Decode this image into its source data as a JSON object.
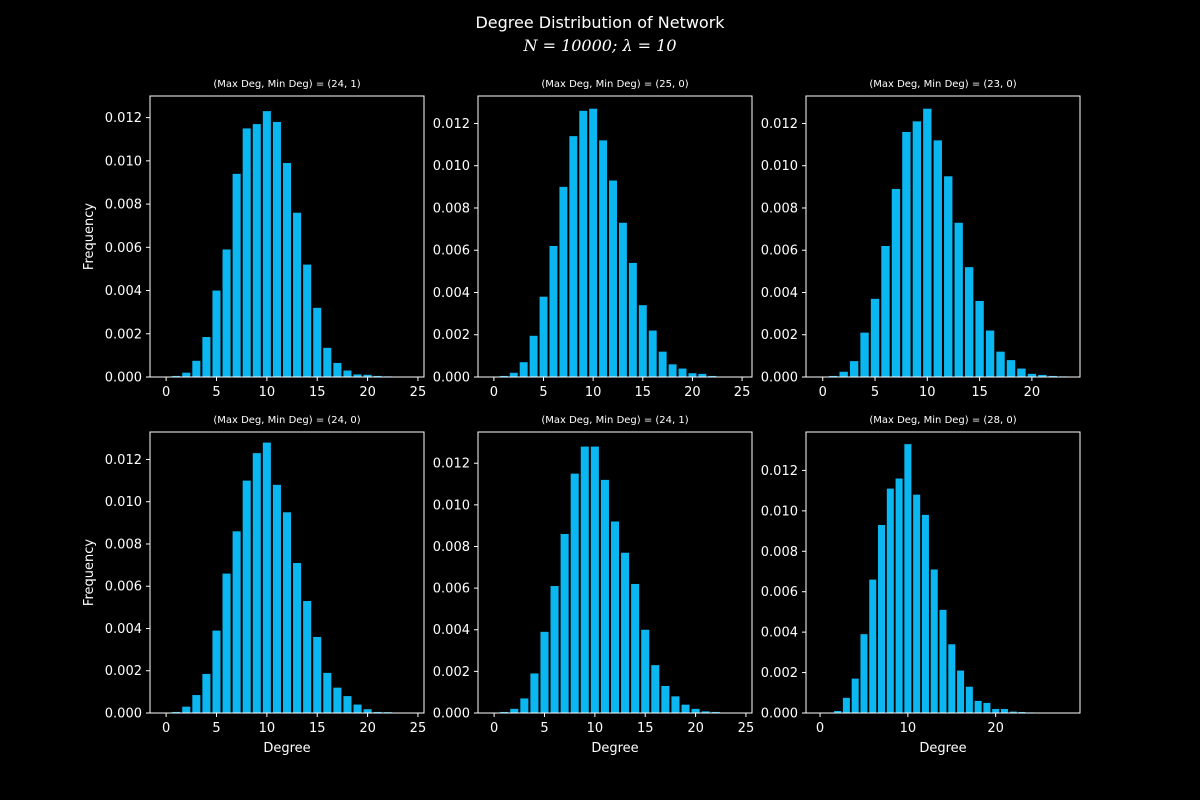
{
  "figure": {
    "title": "Degree Distribution of Network",
    "subtitle": "N = 10000; λ = 10"
  },
  "colors": {
    "background": "#000000",
    "bar": "#0bb7f0",
    "axes": "#ffffff",
    "text": "#ffffff"
  },
  "chart_data": [
    {
      "type": "bar",
      "title": "(Max Deg, Min Deg) = (24, 1)",
      "xlabel": "",
      "ylabel": "Frequency",
      "xlim": [
        -1.6,
        25.6
      ],
      "ylim": [
        0,
        0.013
      ],
      "xticks": [
        0,
        5,
        10,
        15,
        20,
        25
      ],
      "yticks": [
        "0.000",
        "0.002",
        "0.004",
        "0.006",
        "0.008",
        "0.010",
        "0.012"
      ],
      "x": [
        0,
        1,
        2,
        3,
        4,
        5,
        6,
        7,
        8,
        9,
        10,
        11,
        12,
        13,
        14,
        15,
        16,
        17,
        18,
        19,
        20,
        21,
        22,
        23,
        24
      ],
      "values": [
        0.0,
        5e-05,
        0.0002,
        0.00075,
        0.00185,
        0.004,
        0.0059,
        0.0094,
        0.0115,
        0.0117,
        0.0123,
        0.0118,
        0.0099,
        0.0076,
        0.0052,
        0.0032,
        0.00135,
        0.00065,
        0.0003,
        0.00012,
        0.0001,
        5e-05,
        3e-05,
        1e-05,
        1e-05
      ],
      "grid": false
    },
    {
      "type": "bar",
      "title": "(Max Deg, Min Deg) = (25, 0)",
      "xlabel": "",
      "ylabel": "",
      "xlim": [
        -1.6,
        26.0
      ],
      "ylim": [
        0,
        0.0133
      ],
      "xticks": [
        0,
        5,
        10,
        15,
        20,
        25
      ],
      "yticks": [
        "0.000",
        "0.002",
        "0.004",
        "0.006",
        "0.008",
        "0.010",
        "0.012"
      ],
      "x": [
        0,
        1,
        2,
        3,
        4,
        5,
        6,
        7,
        8,
        9,
        10,
        11,
        12,
        13,
        14,
        15,
        16,
        17,
        18,
        19,
        20,
        21,
        22,
        23,
        24,
        25
      ],
      "values": [
        0.0,
        5e-05,
        0.0002,
        0.0007,
        0.00195,
        0.0038,
        0.0062,
        0.009,
        0.0114,
        0.0126,
        0.0127,
        0.0112,
        0.0093,
        0.0073,
        0.0054,
        0.0034,
        0.0022,
        0.0012,
        0.0006,
        0.0004,
        0.00018,
        0.00015,
        5e-05,
        2e-05,
        1e-05,
        1e-05
      ],
      "grid": false
    },
    {
      "type": "bar",
      "title": "(Max Deg, Min Deg) = (23, 0)",
      "xlabel": "",
      "ylabel": "",
      "xlim": [
        -1.6,
        24.6
      ],
      "ylim": [
        0,
        0.0133
      ],
      "xticks": [
        0,
        5,
        10,
        15,
        20
      ],
      "yticks": [
        "0.000",
        "0.002",
        "0.004",
        "0.006",
        "0.008",
        "0.010",
        "0.012"
      ],
      "x": [
        0,
        1,
        2,
        3,
        4,
        5,
        6,
        7,
        8,
        9,
        10,
        11,
        12,
        13,
        14,
        15,
        16,
        17,
        18,
        19,
        20,
        21,
        22,
        23
      ],
      "values": [
        0.0,
        5e-05,
        0.00025,
        0.00075,
        0.0021,
        0.0037,
        0.0062,
        0.0089,
        0.0116,
        0.0121,
        0.0127,
        0.0112,
        0.0095,
        0.0073,
        0.0052,
        0.0036,
        0.0022,
        0.0012,
        0.0008,
        0.0004,
        0.00015,
        0.0001,
        5e-05,
        3e-05
      ],
      "grid": false
    },
    {
      "type": "bar",
      "title": "(Max Deg, Min Deg) = (24, 0)",
      "xlabel": "Degree",
      "ylabel": "Frequency",
      "xlim": [
        -1.6,
        25.6
      ],
      "ylim": [
        0,
        0.0133
      ],
      "xticks": [
        0,
        5,
        10,
        15,
        20,
        25
      ],
      "yticks": [
        "0.000",
        "0.002",
        "0.004",
        "0.006",
        "0.008",
        "0.010",
        "0.012"
      ],
      "x": [
        0,
        1,
        2,
        3,
        4,
        5,
        6,
        7,
        8,
        9,
        10,
        11,
        12,
        13,
        14,
        15,
        16,
        17,
        18,
        19,
        20,
        21,
        22,
        23,
        24
      ],
      "values": [
        0.0,
        5e-05,
        0.0003,
        0.00085,
        0.00185,
        0.0039,
        0.0066,
        0.0086,
        0.011,
        0.0123,
        0.0128,
        0.0108,
        0.0095,
        0.0071,
        0.0053,
        0.0036,
        0.0019,
        0.0012,
        0.0008,
        0.0004,
        0.00018,
        5e-05,
        4e-05,
        1e-05,
        1e-05
      ],
      "grid": false
    },
    {
      "type": "bar",
      "title": "(Max Deg, Min Deg) = (24, 1)",
      "xlabel": "Degree",
      "ylabel": "",
      "xlim": [
        -1.6,
        25.6
      ],
      "ylim": [
        0,
        0.0135
      ],
      "xticks": [
        0,
        5,
        10,
        15,
        20,
        25
      ],
      "yticks": [
        "0.000",
        "0.002",
        "0.004",
        "0.006",
        "0.008",
        "0.010",
        "0.012"
      ],
      "x": [
        0,
        1,
        2,
        3,
        4,
        5,
        6,
        7,
        8,
        9,
        10,
        11,
        12,
        13,
        14,
        15,
        16,
        17,
        18,
        19,
        20,
        21,
        22,
        23,
        24
      ],
      "values": [
        0.0,
        5e-05,
        0.0002,
        0.0007,
        0.0019,
        0.0039,
        0.0061,
        0.0086,
        0.0115,
        0.0128,
        0.0128,
        0.0112,
        0.0092,
        0.0077,
        0.0062,
        0.004,
        0.0023,
        0.0013,
        0.0008,
        0.0004,
        0.0002,
        8e-05,
        5e-05,
        2e-05,
        1e-05
      ],
      "grid": false
    },
    {
      "type": "bar",
      "title": "(Max Deg, Min Deg) = (28, 0)",
      "xlabel": "Degree",
      "ylabel": "",
      "xlim": [
        -1.6,
        29.6
      ],
      "ylim": [
        0,
        0.0139
      ],
      "xticks": [
        0,
        10,
        20
      ],
      "yticks": [
        "0.000",
        "0.002",
        "0.004",
        "0.006",
        "0.008",
        "0.010",
        "0.012"
      ],
      "x": [
        0,
        1,
        2,
        3,
        4,
        5,
        6,
        7,
        8,
        9,
        10,
        11,
        12,
        13,
        14,
        15,
        16,
        17,
        18,
        19,
        20,
        21,
        22,
        23,
        24,
        25,
        26,
        27,
        28
      ],
      "values": [
        0.0,
        0.0,
        0.0001,
        0.00075,
        0.0017,
        0.0039,
        0.0066,
        0.0093,
        0.0111,
        0.0116,
        0.0133,
        0.0108,
        0.0098,
        0.0071,
        0.0051,
        0.0034,
        0.0021,
        0.0013,
        0.0006,
        0.0005,
        0.0002,
        0.0002,
        7e-05,
        5e-05,
        3e-05,
        1e-05,
        0.0,
        0.0,
        0.0
      ],
      "grid": false
    }
  ]
}
